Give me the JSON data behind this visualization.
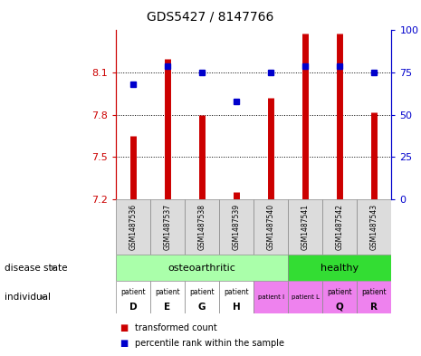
{
  "title": "GDS5427 / 8147766",
  "samples": [
    "GSM1487536",
    "GSM1487537",
    "GSM1487538",
    "GSM1487539",
    "GSM1487540",
    "GSM1487541",
    "GSM1487542",
    "GSM1487543"
  ],
  "red_values": [
    7.65,
    8.2,
    7.8,
    7.25,
    7.92,
    8.38,
    8.38,
    7.82
  ],
  "blue_values": [
    68,
    79,
    75,
    58,
    75,
    79,
    79,
    75
  ],
  "ylim_left": [
    7.2,
    8.4
  ],
  "ylim_right": [
    0,
    100
  ],
  "yticks_left": [
    7.2,
    7.5,
    7.8,
    8.1
  ],
  "yticks_right": [
    0,
    25,
    50,
    75,
    100
  ],
  "oa_range": [
    0,
    4
  ],
  "healthy_range": [
    5,
    7
  ],
  "disease_color_light_green": "#AAFFAA",
  "disease_color_green": "#33DD33",
  "ind_colors": [
    "#FFFFFF",
    "#FFFFFF",
    "#FFFFFF",
    "#FFFFFF",
    "#EE82EE",
    "#EE82EE",
    "#EE82EE",
    "#EE82EE"
  ],
  "ind_bold": [
    true,
    true,
    true,
    true,
    false,
    false,
    true,
    true
  ],
  "individual_labels": [
    "patient\nD",
    "patient\nE",
    "patient\nG",
    "patient\nH",
    "patient I",
    "patient L",
    "patient\nQ",
    "patient\nR"
  ],
  "bar_color": "#CC0000",
  "dot_color": "#0000CC",
  "axis_bg": "#DCDCDC",
  "label_left_color": "#CC0000",
  "label_right_color": "#0000CC"
}
